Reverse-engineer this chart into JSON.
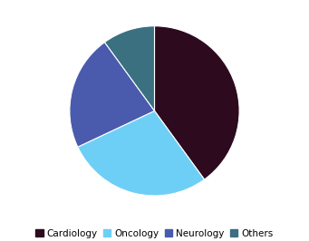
{
  "labels": [
    "Cardiology",
    "Oncology",
    "Neurology",
    "Others"
  ],
  "values": [
    40,
    28,
    22,
    10
  ],
  "colors": [
    "#2d0a1e",
    "#6ecff6",
    "#4a5aad",
    "#3a7080"
  ],
  "startangle": 90,
  "legend_fontsize": 7.5,
  "background_color": "#ffffff",
  "counterclock": false
}
